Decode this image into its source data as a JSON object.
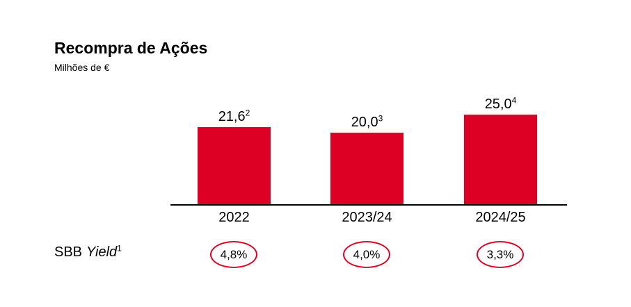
{
  "header": {
    "title": "Recompra de Ações",
    "subtitle": "Milhões de €"
  },
  "yield_row": {
    "prefix": "SBB",
    "italic_word": "Yield",
    "footnote_marker": "1",
    "value_labels": [
      "4,8%",
      "4,0%",
      "3,3%"
    ]
  },
  "chart_data": {
    "type": "bar",
    "title": "Recompra de Ações",
    "subtitle": "Milhões de €",
    "xlabel": "",
    "ylabel": "Milhões de €",
    "categories": [
      "2022",
      "2023/24",
      "2024/25"
    ],
    "values": [
      21.6,
      20.0,
      25.0
    ],
    "value_labels": [
      "21,6",
      "20,0",
      "25,0"
    ],
    "footnote_markers": [
      "2",
      "3",
      "4"
    ],
    "ylim": [
      0,
      26
    ],
    "grid": false,
    "legend": false,
    "bar_color": "#de0024",
    "axis_color": "#000000",
    "text_color": "#000000",
    "secondary_row": {
      "label": "SBB Yield",
      "footnote_marker": "1",
      "values_pct": [
        4.8,
        4.0,
        3.3
      ],
      "value_labels": [
        "4,8%",
        "4,0%",
        "3,3%"
      ],
      "circle_color": "#de0024"
    }
  }
}
